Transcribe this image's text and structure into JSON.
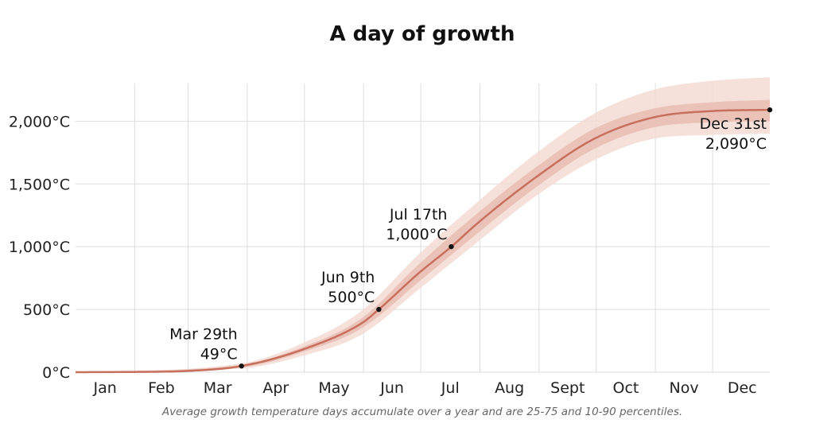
{
  "chart_data": {
    "type": "line",
    "title": "A day of growth",
    "caption": "Average growth temperature days accumulate over a year and are 25-75 and 10-90 percentiles.",
    "xlabel": "",
    "ylabel": "",
    "x_axis": {
      "type": "day-of-year",
      "range": [
        "Jan 1",
        "Dec 31"
      ],
      "tick_labels": [
        "Jan",
        "Feb",
        "Mar",
        "Apr",
        "May",
        "Jun",
        "Jul",
        "Aug",
        "Sept",
        "Oct",
        "Nov",
        "Dec"
      ]
    },
    "y_axis": {
      "range": [
        0,
        2300
      ],
      "ticks": [
        0,
        500,
        1000,
        1500,
        2000
      ],
      "tick_labels": [
        "0°C",
        "500°C",
        "1,000°C",
        "1,500°C",
        "2,000°C"
      ]
    },
    "grid": {
      "vertical": true,
      "horizontal": true
    },
    "colors": {
      "median": "#c8705e",
      "band_25_75": "#e9bcb2",
      "band_10_90": "#f3dad4",
      "grid": "#dddddd",
      "marker": "#111111"
    },
    "series": [
      {
        "kind": "median",
        "x": [
          "Jan 1",
          "Jan 31",
          "Mar 1",
          "Mar 29",
          "Apr 30",
          "May 31",
          "Jun 9",
          "Jun 30",
          "Jul 17",
          "Jul 31",
          "Aug 31",
          "Sep 30",
          "Oct 31",
          "Nov 30",
          "Dec 31"
        ],
        "y": [
          0,
          2,
          10,
          49,
          180,
          390,
          500,
          790,
          1000,
          1190,
          1560,
          1860,
          2030,
          2080,
          2090
        ]
      },
      {
        "kind": "band",
        "label": "25-75 percentile",
        "x": [
          "Jan 1",
          "Mar 29",
          "Apr 30",
          "May 31",
          "Jun 30",
          "Jul 31",
          "Aug 31",
          "Sep 30",
          "Oct 31",
          "Nov 30",
          "Dec 31"
        ],
        "low": [
          0,
          40,
          160,
          350,
          720,
          1110,
          1480,
          1780,
          1950,
          1990,
          2000
        ],
        "high": [
          0,
          58,
          200,
          430,
          860,
          1270,
          1640,
          1940,
          2100,
          2150,
          2170
        ]
      },
      {
        "kind": "band",
        "label": "10-90 percentile",
        "x": [
          "Jan 1",
          "Mar 29",
          "Apr 30",
          "May 31",
          "Jun 30",
          "Jul 31",
          "Aug 31",
          "Sep 30",
          "Oct 31",
          "Nov 30",
          "Dec 31"
        ],
        "low": [
          0,
          30,
          130,
          300,
          660,
          1040,
          1410,
          1690,
          1860,
          1890,
          1900
        ],
        "high": [
          0,
          70,
          230,
          490,
          940,
          1360,
          1750,
          2060,
          2250,
          2320,
          2350
        ]
      }
    ],
    "annotations": [
      {
        "date": "Mar 29th",
        "x": "Mar 29",
        "y": 49,
        "value_label": "49°C"
      },
      {
        "date": "Jun 9th",
        "x": "Jun 9",
        "y": 500,
        "value_label": "500°C"
      },
      {
        "date": "Jul 17th",
        "x": "Jul 17",
        "y": 1000,
        "value_label": "1,000°C"
      },
      {
        "date": "Dec 31st",
        "x": "Dec 31",
        "y": 2090,
        "value_label": "2,090°C"
      }
    ]
  }
}
